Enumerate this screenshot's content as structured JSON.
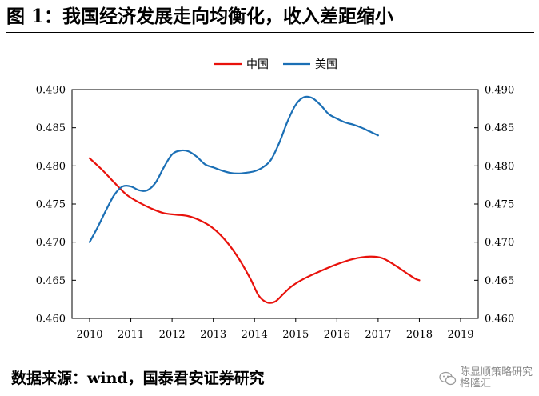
{
  "title": "图 1：我国经济发展走向均衡化，收入差距缩小",
  "source": "数据来源：wind，国泰君安证券研究",
  "watermark": {
    "icon": "wechat-icon",
    "line1": "陈显顺策略研究",
    "line2": "格隆汇"
  },
  "chart_data": {
    "type": "line",
    "title": "",
    "xlabel": "",
    "ylabel": "",
    "x_ticks": [
      "2010",
      "2011",
      "2012",
      "2013",
      "2014",
      "2015",
      "2016",
      "2017",
      "2018",
      "2019"
    ],
    "xlim": [
      2010,
      2019
    ],
    "ylim": [
      0.46,
      0.49
    ],
    "y_ticks": [
      "0.460",
      "0.465",
      "0.470",
      "0.475",
      "0.480",
      "0.485",
      "0.490"
    ],
    "y2_ticks": [
      "0.460",
      "0.465",
      "0.470",
      "0.475",
      "0.480",
      "0.485",
      "0.490"
    ],
    "grid": false,
    "legend_position": "top-center",
    "series": [
      {
        "name": "中国",
        "color": "#e8120c",
        "points": [
          [
            2010.0,
            0.481
          ],
          [
            2010.3,
            0.4795
          ],
          [
            2010.6,
            0.4778
          ],
          [
            2010.9,
            0.4762
          ],
          [
            2011.2,
            0.4752
          ],
          [
            2011.5,
            0.4744
          ],
          [
            2011.8,
            0.4738
          ],
          [
            2012.1,
            0.4736
          ],
          [
            2012.4,
            0.4734
          ],
          [
            2012.7,
            0.4728
          ],
          [
            2013.0,
            0.4718
          ],
          [
            2013.3,
            0.4702
          ],
          [
            2013.6,
            0.468
          ],
          [
            2013.9,
            0.4652
          ],
          [
            2014.1,
            0.463
          ],
          [
            2014.3,
            0.4621
          ],
          [
            2014.5,
            0.4622
          ],
          [
            2014.7,
            0.4632
          ],
          [
            2014.9,
            0.4642
          ],
          [
            2015.2,
            0.4652
          ],
          [
            2015.6,
            0.4662
          ],
          [
            2016.0,
            0.4671
          ],
          [
            2016.4,
            0.4678
          ],
          [
            2016.8,
            0.4681
          ],
          [
            2017.1,
            0.4679
          ],
          [
            2017.4,
            0.467
          ],
          [
            2017.7,
            0.4659
          ],
          [
            2017.9,
            0.4652
          ],
          [
            2018.0,
            0.465
          ]
        ]
      },
      {
        "name": "美国",
        "color": "#1b6fb5",
        "points": [
          [
            2010.0,
            0.47
          ],
          [
            2010.2,
            0.472
          ],
          [
            2010.4,
            0.4742
          ],
          [
            2010.6,
            0.4762
          ],
          [
            2010.8,
            0.4773
          ],
          [
            2011.0,
            0.4773
          ],
          [
            2011.2,
            0.4768
          ],
          [
            2011.4,
            0.4768
          ],
          [
            2011.6,
            0.4778
          ],
          [
            2011.8,
            0.4798
          ],
          [
            2012.0,
            0.4815
          ],
          [
            2012.2,
            0.482
          ],
          [
            2012.4,
            0.4819
          ],
          [
            2012.6,
            0.4812
          ],
          [
            2012.8,
            0.4802
          ],
          [
            2013.0,
            0.4798
          ],
          [
            2013.2,
            0.4794
          ],
          [
            2013.4,
            0.4791
          ],
          [
            2013.6,
            0.479
          ],
          [
            2013.8,
            0.4791
          ],
          [
            2014.0,
            0.4793
          ],
          [
            2014.2,
            0.4798
          ],
          [
            2014.4,
            0.4808
          ],
          [
            2014.6,
            0.483
          ],
          [
            2014.8,
            0.4858
          ],
          [
            2015.0,
            0.488
          ],
          [
            2015.2,
            0.489
          ],
          [
            2015.4,
            0.4889
          ],
          [
            2015.6,
            0.488
          ],
          [
            2015.8,
            0.4868
          ],
          [
            2016.0,
            0.4862
          ],
          [
            2016.2,
            0.4857
          ],
          [
            2016.4,
            0.4854
          ],
          [
            2016.6,
            0.485
          ],
          [
            2016.8,
            0.4845
          ],
          [
            2017.0,
            0.484
          ]
        ]
      }
    ]
  }
}
